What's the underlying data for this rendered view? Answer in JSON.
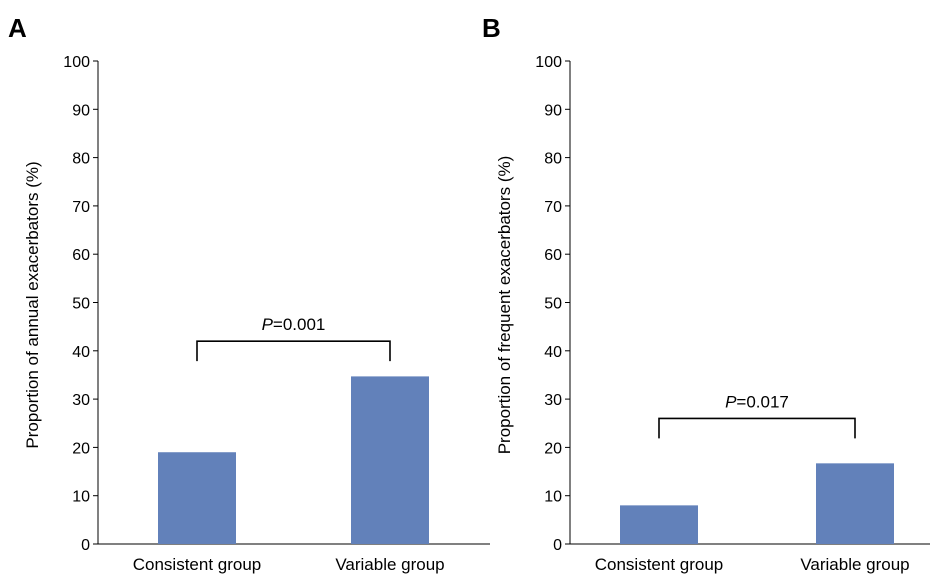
{
  "chart_data": [
    {
      "type": "bar",
      "panel_label": "A",
      "categories": [
        "Consistent group",
        "Variable group"
      ],
      "values": [
        19,
        34.7
      ],
      "ylabel": "Proportion of annual exacerbators (%)",
      "ylim": [
        0,
        100
      ],
      "yticks": [
        0,
        10,
        20,
        30,
        40,
        50,
        60,
        70,
        80,
        90,
        100
      ],
      "grid": false,
      "bar_color": "#6281ba",
      "annotation": {
        "italic": "P",
        "text": "=0.001",
        "bracket_y": 42
      }
    },
    {
      "type": "bar",
      "panel_label": "B",
      "categories": [
        "Consistent group",
        "Variable group"
      ],
      "values": [
        8,
        16.7
      ],
      "ylabel": "Proportion of frequent exacerbators (%)",
      "ylim": [
        0,
        100
      ],
      "yticks": [
        0,
        10,
        20,
        30,
        40,
        50,
        60,
        70,
        80,
        90,
        100
      ],
      "grid": false,
      "bar_color": "#6281ba",
      "annotation": {
        "italic": "P",
        "text": "=0.017",
        "bracket_y": 26
      }
    }
  ]
}
